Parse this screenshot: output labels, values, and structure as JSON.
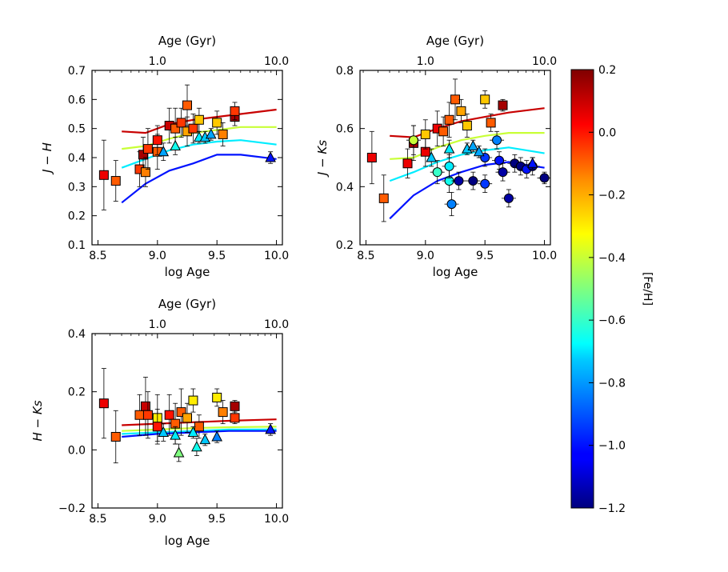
{
  "chart_data": [
    {
      "type": "scatter",
      "id": "jh",
      "xlabel": "log Age",
      "ylabel": "J − H",
      "top_axis_label": "Age (Gyr)",
      "top_ticks": [
        "1.0",
        "10.0"
      ],
      "xlim": [
        8.45,
        10.05
      ],
      "ylim": [
        0.1,
        0.7
      ],
      "x_ticks": [
        "8.5",
        "9.0",
        "9.5",
        "10.0"
      ],
      "y_ticks": [
        "0.1",
        "0.2",
        "0.3",
        "0.4",
        "0.5",
        "0.6",
        "0.7"
      ],
      "model_lines": [
        {
          "feh": 0.1,
          "x": [
            8.7,
            8.9,
            9.1,
            9.3,
            9.5,
            9.7,
            10.0
          ],
          "y": [
            0.49,
            0.485,
            0.515,
            0.53,
            0.54,
            0.55,
            0.565
          ]
        },
        {
          "feh": -0.4,
          "x": [
            8.7,
            8.9,
            9.1,
            9.3,
            9.5,
            9.7,
            10.0
          ],
          "y": [
            0.43,
            0.44,
            0.465,
            0.485,
            0.495,
            0.505,
            0.505
          ]
        },
        {
          "feh": -0.7,
          "x": [
            8.7,
            8.9,
            9.1,
            9.3,
            9.5,
            9.7,
            10.0
          ],
          "y": [
            0.365,
            0.395,
            0.425,
            0.445,
            0.455,
            0.46,
            0.445
          ]
        },
        {
          "feh": -1.0,
          "x": [
            8.7,
            8.9,
            9.1,
            9.3,
            9.5,
            9.7,
            10.0
          ],
          "y": [
            0.245,
            0.31,
            0.355,
            0.38,
            0.41,
            0.41,
            0.395
          ]
        }
      ],
      "points": [
        {
          "x": 8.55,
          "y": 0.34,
          "feh": 0.05,
          "m": "s",
          "err": 0.12
        },
        {
          "x": 8.65,
          "y": 0.32,
          "feh": -0.1,
          "m": "s",
          "err": 0.07
        },
        {
          "x": 8.85,
          "y": 0.36,
          "feh": -0.05,
          "m": "s",
          "err": 0.06
        },
        {
          "x": 8.88,
          "y": 0.41,
          "feh": 0.15,
          "m": "s",
          "err": 0.06
        },
        {
          "x": 8.9,
          "y": 0.35,
          "feh": -0.15,
          "m": "s",
          "err": 0.05
        },
        {
          "x": 8.92,
          "y": 0.43,
          "feh": -0.05,
          "m": "s",
          "err": 0.07
        },
        {
          "x": 9.0,
          "y": 0.42,
          "feh": -0.1,
          "m": "s",
          "err": 0.06
        },
        {
          "x": 9.0,
          "y": 0.46,
          "feh": 0.0,
          "m": "s",
          "err": 0.05
        },
        {
          "x": 9.1,
          "y": 0.51,
          "feh": 0.1,
          "m": "s",
          "err": 0.06
        },
        {
          "x": 9.15,
          "y": 0.5,
          "feh": -0.1,
          "m": "s",
          "err": 0.07
        },
        {
          "x": 9.2,
          "y": 0.52,
          "feh": -0.05,
          "m": "s",
          "err": 0.05
        },
        {
          "x": 9.25,
          "y": 0.58,
          "feh": -0.1,
          "m": "s",
          "err": 0.07
        },
        {
          "x": 9.25,
          "y": 0.49,
          "feh": -0.2,
          "m": "s",
          "err": 0.05
        },
        {
          "x": 9.3,
          "y": 0.5,
          "feh": -0.05,
          "m": "s",
          "err": 0.05
        },
        {
          "x": 9.35,
          "y": 0.53,
          "feh": -0.25,
          "m": "s",
          "err": 0.04
        },
        {
          "x": 9.5,
          "y": 0.52,
          "feh": -0.25,
          "m": "s",
          "err": 0.04
        },
        {
          "x": 9.55,
          "y": 0.48,
          "feh": -0.15,
          "m": "s",
          "err": 0.04
        },
        {
          "x": 9.65,
          "y": 0.54,
          "feh": 0.15,
          "m": "s",
          "err": 0.03
        },
        {
          "x": 9.65,
          "y": 0.56,
          "feh": -0.05,
          "m": "s",
          "err": 0.03
        },
        {
          "x": 9.05,
          "y": 0.42,
          "feh": -0.8,
          "m": "t",
          "err": 0.03
        },
        {
          "x": 9.15,
          "y": 0.44,
          "feh": -0.65,
          "m": "t",
          "err": 0.03
        },
        {
          "x": 9.35,
          "y": 0.47,
          "feh": -0.7,
          "m": "t",
          "err": 0.02
        },
        {
          "x": 9.4,
          "y": 0.47,
          "feh": -0.75,
          "m": "t",
          "err": 0.02
        },
        {
          "x": 9.45,
          "y": 0.48,
          "feh": -0.8,
          "m": "t",
          "err": 0.02
        },
        {
          "x": 9.95,
          "y": 0.4,
          "feh": -1.0,
          "m": "t",
          "err": 0.02
        }
      ]
    },
    {
      "type": "scatter",
      "id": "jk",
      "xlabel": "log Age",
      "ylabel": "J − Ks",
      "top_axis_label": "Age (Gyr)",
      "top_ticks": [
        "1.0",
        "10.0"
      ],
      "xlim": [
        8.45,
        10.05
      ],
      "ylim": [
        0.2,
        0.8
      ],
      "x_ticks": [
        "8.5",
        "9.0",
        "9.5",
        "10.0"
      ],
      "y_ticks": [
        "0.2",
        "0.4",
        "0.6",
        "0.8"
      ],
      "model_lines": [
        {
          "feh": 0.1,
          "x": [
            8.7,
            8.9,
            9.1,
            9.3,
            9.5,
            9.7,
            10.0
          ],
          "y": [
            0.575,
            0.57,
            0.6,
            0.625,
            0.64,
            0.655,
            0.67
          ]
        },
        {
          "feh": -0.4,
          "x": [
            8.7,
            8.9,
            9.1,
            9.3,
            9.5,
            9.7,
            10.0
          ],
          "y": [
            0.495,
            0.5,
            0.535,
            0.56,
            0.575,
            0.585,
            0.585
          ]
        },
        {
          "feh": -0.7,
          "x": [
            8.7,
            8.9,
            9.1,
            9.3,
            9.5,
            9.7,
            10.0
          ],
          "y": [
            0.42,
            0.45,
            0.485,
            0.51,
            0.525,
            0.535,
            0.515
          ]
        },
        {
          "feh": -1.0,
          "x": [
            8.7,
            8.9,
            9.1,
            9.3,
            9.5,
            9.7,
            10.0
          ],
          "y": [
            0.29,
            0.37,
            0.42,
            0.45,
            0.475,
            0.485,
            0.465
          ]
        }
      ],
      "points": [
        {
          "x": 8.55,
          "y": 0.5,
          "feh": 0.05,
          "m": "s",
          "err": 0.09
        },
        {
          "x": 8.65,
          "y": 0.36,
          "feh": -0.1,
          "m": "s",
          "err": 0.08
        },
        {
          "x": 8.85,
          "y": 0.48,
          "feh": 0.05,
          "m": "s",
          "err": 0.05
        },
        {
          "x": 8.9,
          "y": 0.55,
          "feh": 0.15,
          "m": "s",
          "err": 0.06
        },
        {
          "x": 9.0,
          "y": 0.52,
          "feh": 0.05,
          "m": "s",
          "err": 0.05
        },
        {
          "x": 9.0,
          "y": 0.58,
          "feh": -0.25,
          "m": "s",
          "err": 0.05
        },
        {
          "x": 9.1,
          "y": 0.6,
          "feh": 0.05,
          "m": "s",
          "err": 0.06
        },
        {
          "x": 9.15,
          "y": 0.59,
          "feh": -0.1,
          "m": "s",
          "err": 0.05
        },
        {
          "x": 9.2,
          "y": 0.63,
          "feh": -0.1,
          "m": "s",
          "err": 0.06
        },
        {
          "x": 9.25,
          "y": 0.7,
          "feh": -0.1,
          "m": "s",
          "err": 0.07
        },
        {
          "x": 9.3,
          "y": 0.66,
          "feh": -0.2,
          "m": "s",
          "err": 0.04
        },
        {
          "x": 9.35,
          "y": 0.61,
          "feh": -0.25,
          "m": "s",
          "err": 0.04
        },
        {
          "x": 9.5,
          "y": 0.7,
          "feh": -0.25,
          "m": "s",
          "err": 0.03
        },
        {
          "x": 9.55,
          "y": 0.62,
          "feh": -0.1,
          "m": "s",
          "err": 0.03
        },
        {
          "x": 9.65,
          "y": 0.68,
          "feh": 0.15,
          "m": "s",
          "err": 0.02
        },
        {
          "x": 8.9,
          "y": 0.56,
          "feh": -0.4,
          "m": "c",
          "err": 0.05
        },
        {
          "x": 9.1,
          "y": 0.45,
          "feh": -0.6,
          "m": "c",
          "err": 0.04
        },
        {
          "x": 9.2,
          "y": 0.42,
          "feh": -0.65,
          "m": "c",
          "err": 0.04
        },
        {
          "x": 9.2,
          "y": 0.47,
          "feh": -0.7,
          "m": "c",
          "err": 0.04
        },
        {
          "x": 9.22,
          "y": 0.34,
          "feh": -0.85,
          "m": "c",
          "err": 0.04
        },
        {
          "x": 9.28,
          "y": 0.42,
          "feh": -1.15,
          "m": "c",
          "err": 0.03
        },
        {
          "x": 9.4,
          "y": 0.42,
          "feh": -1.2,
          "m": "c",
          "err": 0.03
        },
        {
          "x": 9.5,
          "y": 0.41,
          "feh": -0.95,
          "m": "c",
          "err": 0.03
        },
        {
          "x": 9.5,
          "y": 0.5,
          "feh": -0.95,
          "m": "c",
          "err": 0.03
        },
        {
          "x": 9.6,
          "y": 0.56,
          "feh": -0.85,
          "m": "c",
          "err": 0.03
        },
        {
          "x": 9.62,
          "y": 0.49,
          "feh": -1.0,
          "m": "c",
          "err": 0.03
        },
        {
          "x": 9.65,
          "y": 0.45,
          "feh": -1.15,
          "m": "c",
          "err": 0.03
        },
        {
          "x": 9.7,
          "y": 0.36,
          "feh": -1.15,
          "m": "c",
          "err": 0.03
        },
        {
          "x": 9.75,
          "y": 0.48,
          "feh": -1.2,
          "m": "c",
          "err": 0.03
        },
        {
          "x": 9.8,
          "y": 0.47,
          "feh": -1.2,
          "m": "c",
          "err": 0.03
        },
        {
          "x": 9.85,
          "y": 0.46,
          "feh": -1.0,
          "m": "c",
          "err": 0.03
        },
        {
          "x": 9.9,
          "y": 0.47,
          "feh": -1.15,
          "m": "c",
          "err": 0.03
        },
        {
          "x": 10.0,
          "y": 0.43,
          "feh": -1.2,
          "m": "c",
          "err": 0.02
        },
        {
          "x": 9.05,
          "y": 0.5,
          "feh": -0.75,
          "m": "t",
          "err": 0.03
        },
        {
          "x": 9.2,
          "y": 0.53,
          "feh": -0.7,
          "m": "t",
          "err": 0.03
        },
        {
          "x": 9.35,
          "y": 0.53,
          "feh": -0.75,
          "m": "t",
          "err": 0.02
        },
        {
          "x": 9.4,
          "y": 0.54,
          "feh": -0.8,
          "m": "t",
          "err": 0.02
        },
        {
          "x": 9.45,
          "y": 0.52,
          "feh": -0.8,
          "m": "t",
          "err": 0.02
        },
        {
          "x": 9.9,
          "y": 0.48,
          "feh": -1.0,
          "m": "t",
          "err": 0.02
        }
      ]
    },
    {
      "type": "scatter",
      "id": "hk",
      "xlabel": "log Age",
      "ylabel": "H − Ks",
      "top_axis_label": "Age (Gyr)",
      "top_ticks": [
        "1.0",
        "10.0"
      ],
      "xlim": [
        8.45,
        10.05
      ],
      "ylim": [
        -0.2,
        0.4
      ],
      "x_ticks": [
        "8.5",
        "9.0",
        "9.5",
        "10.0"
      ],
      "y_ticks": [
        "−0.2",
        "0.0",
        "0.2",
        "0.4"
      ],
      "model_lines": [
        {
          "feh": 0.1,
          "x": [
            8.7,
            9.0,
            9.3,
            9.6,
            10.0
          ],
          "y": [
            0.085,
            0.09,
            0.095,
            0.1,
            0.105
          ]
        },
        {
          "feh": -0.4,
          "x": [
            8.7,
            9.0,
            9.3,
            9.6,
            10.0
          ],
          "y": [
            0.065,
            0.07,
            0.075,
            0.078,
            0.08
          ]
        },
        {
          "feh": -0.7,
          "x": [
            8.7,
            9.0,
            9.3,
            9.6,
            10.0
          ],
          "y": [
            0.055,
            0.06,
            0.065,
            0.07,
            0.07
          ]
        },
        {
          "feh": -1.0,
          "x": [
            8.7,
            9.0,
            9.3,
            9.6,
            10.0
          ],
          "y": [
            0.045,
            0.055,
            0.06,
            0.065,
            0.065
          ]
        }
      ],
      "points": [
        {
          "x": 8.55,
          "y": 0.16,
          "feh": 0.05,
          "m": "s",
          "err": 0.12
        },
        {
          "x": 8.65,
          "y": 0.045,
          "feh": -0.1,
          "m": "s",
          "err": 0.09
        },
        {
          "x": 8.85,
          "y": 0.12,
          "feh": -0.1,
          "m": "s",
          "err": 0.07
        },
        {
          "x": 8.9,
          "y": 0.15,
          "feh": 0.1,
          "m": "s",
          "err": 0.1
        },
        {
          "x": 8.92,
          "y": 0.12,
          "feh": -0.05,
          "m": "s",
          "err": 0.08
        },
        {
          "x": 9.0,
          "y": 0.11,
          "feh": -0.3,
          "m": "s",
          "err": 0.08
        },
        {
          "x": 9.0,
          "y": 0.08,
          "feh": 0.0,
          "m": "s",
          "err": 0.06
        },
        {
          "x": 9.1,
          "y": 0.12,
          "feh": 0.0,
          "m": "s",
          "err": 0.07
        },
        {
          "x": 9.15,
          "y": 0.09,
          "feh": -0.1,
          "m": "s",
          "err": 0.07
        },
        {
          "x": 9.2,
          "y": 0.13,
          "feh": -0.1,
          "m": "s",
          "err": 0.08
        },
        {
          "x": 9.25,
          "y": 0.11,
          "feh": -0.2,
          "m": "s",
          "err": 0.05
        },
        {
          "x": 9.3,
          "y": 0.17,
          "feh": -0.3,
          "m": "s",
          "err": 0.04
        },
        {
          "x": 9.35,
          "y": 0.08,
          "feh": -0.1,
          "m": "s",
          "err": 0.04
        },
        {
          "x": 9.5,
          "y": 0.18,
          "feh": -0.3,
          "m": "s",
          "err": 0.03
        },
        {
          "x": 9.55,
          "y": 0.13,
          "feh": -0.15,
          "m": "s",
          "err": 0.04
        },
        {
          "x": 9.65,
          "y": 0.15,
          "feh": 0.15,
          "m": "s",
          "err": 0.02
        },
        {
          "x": 9.65,
          "y": 0.11,
          "feh": -0.05,
          "m": "s",
          "err": 0.02
        },
        {
          "x": 9.05,
          "y": 0.06,
          "feh": -0.75,
          "m": "t",
          "err": 0.03
        },
        {
          "x": 9.15,
          "y": 0.05,
          "feh": -0.7,
          "m": "t",
          "err": 0.03
        },
        {
          "x": 9.18,
          "y": -0.01,
          "feh": -0.5,
          "m": "t",
          "err": 0.03
        },
        {
          "x": 9.3,
          "y": 0.06,
          "feh": -0.7,
          "m": "t",
          "err": 0.02
        },
        {
          "x": 9.33,
          "y": 0.01,
          "feh": -0.65,
          "m": "t",
          "err": 0.03
        },
        {
          "x": 9.4,
          "y": 0.035,
          "feh": -0.75,
          "m": "t",
          "err": 0.02
        },
        {
          "x": 9.5,
          "y": 0.045,
          "feh": -0.85,
          "m": "t",
          "err": 0.02
        },
        {
          "x": 9.95,
          "y": 0.07,
          "feh": -1.0,
          "m": "t",
          "err": 0.02
        }
      ]
    }
  ],
  "colorbar": {
    "label": "[Fe/H]",
    "min": -1.2,
    "max": 0.2,
    "ticks": [
      "0.2",
      "0.0",
      "−0.2",
      "−0.4",
      "−0.6",
      "−0.8",
      "−1.0",
      "−1.2"
    ],
    "colormap": "jet"
  }
}
